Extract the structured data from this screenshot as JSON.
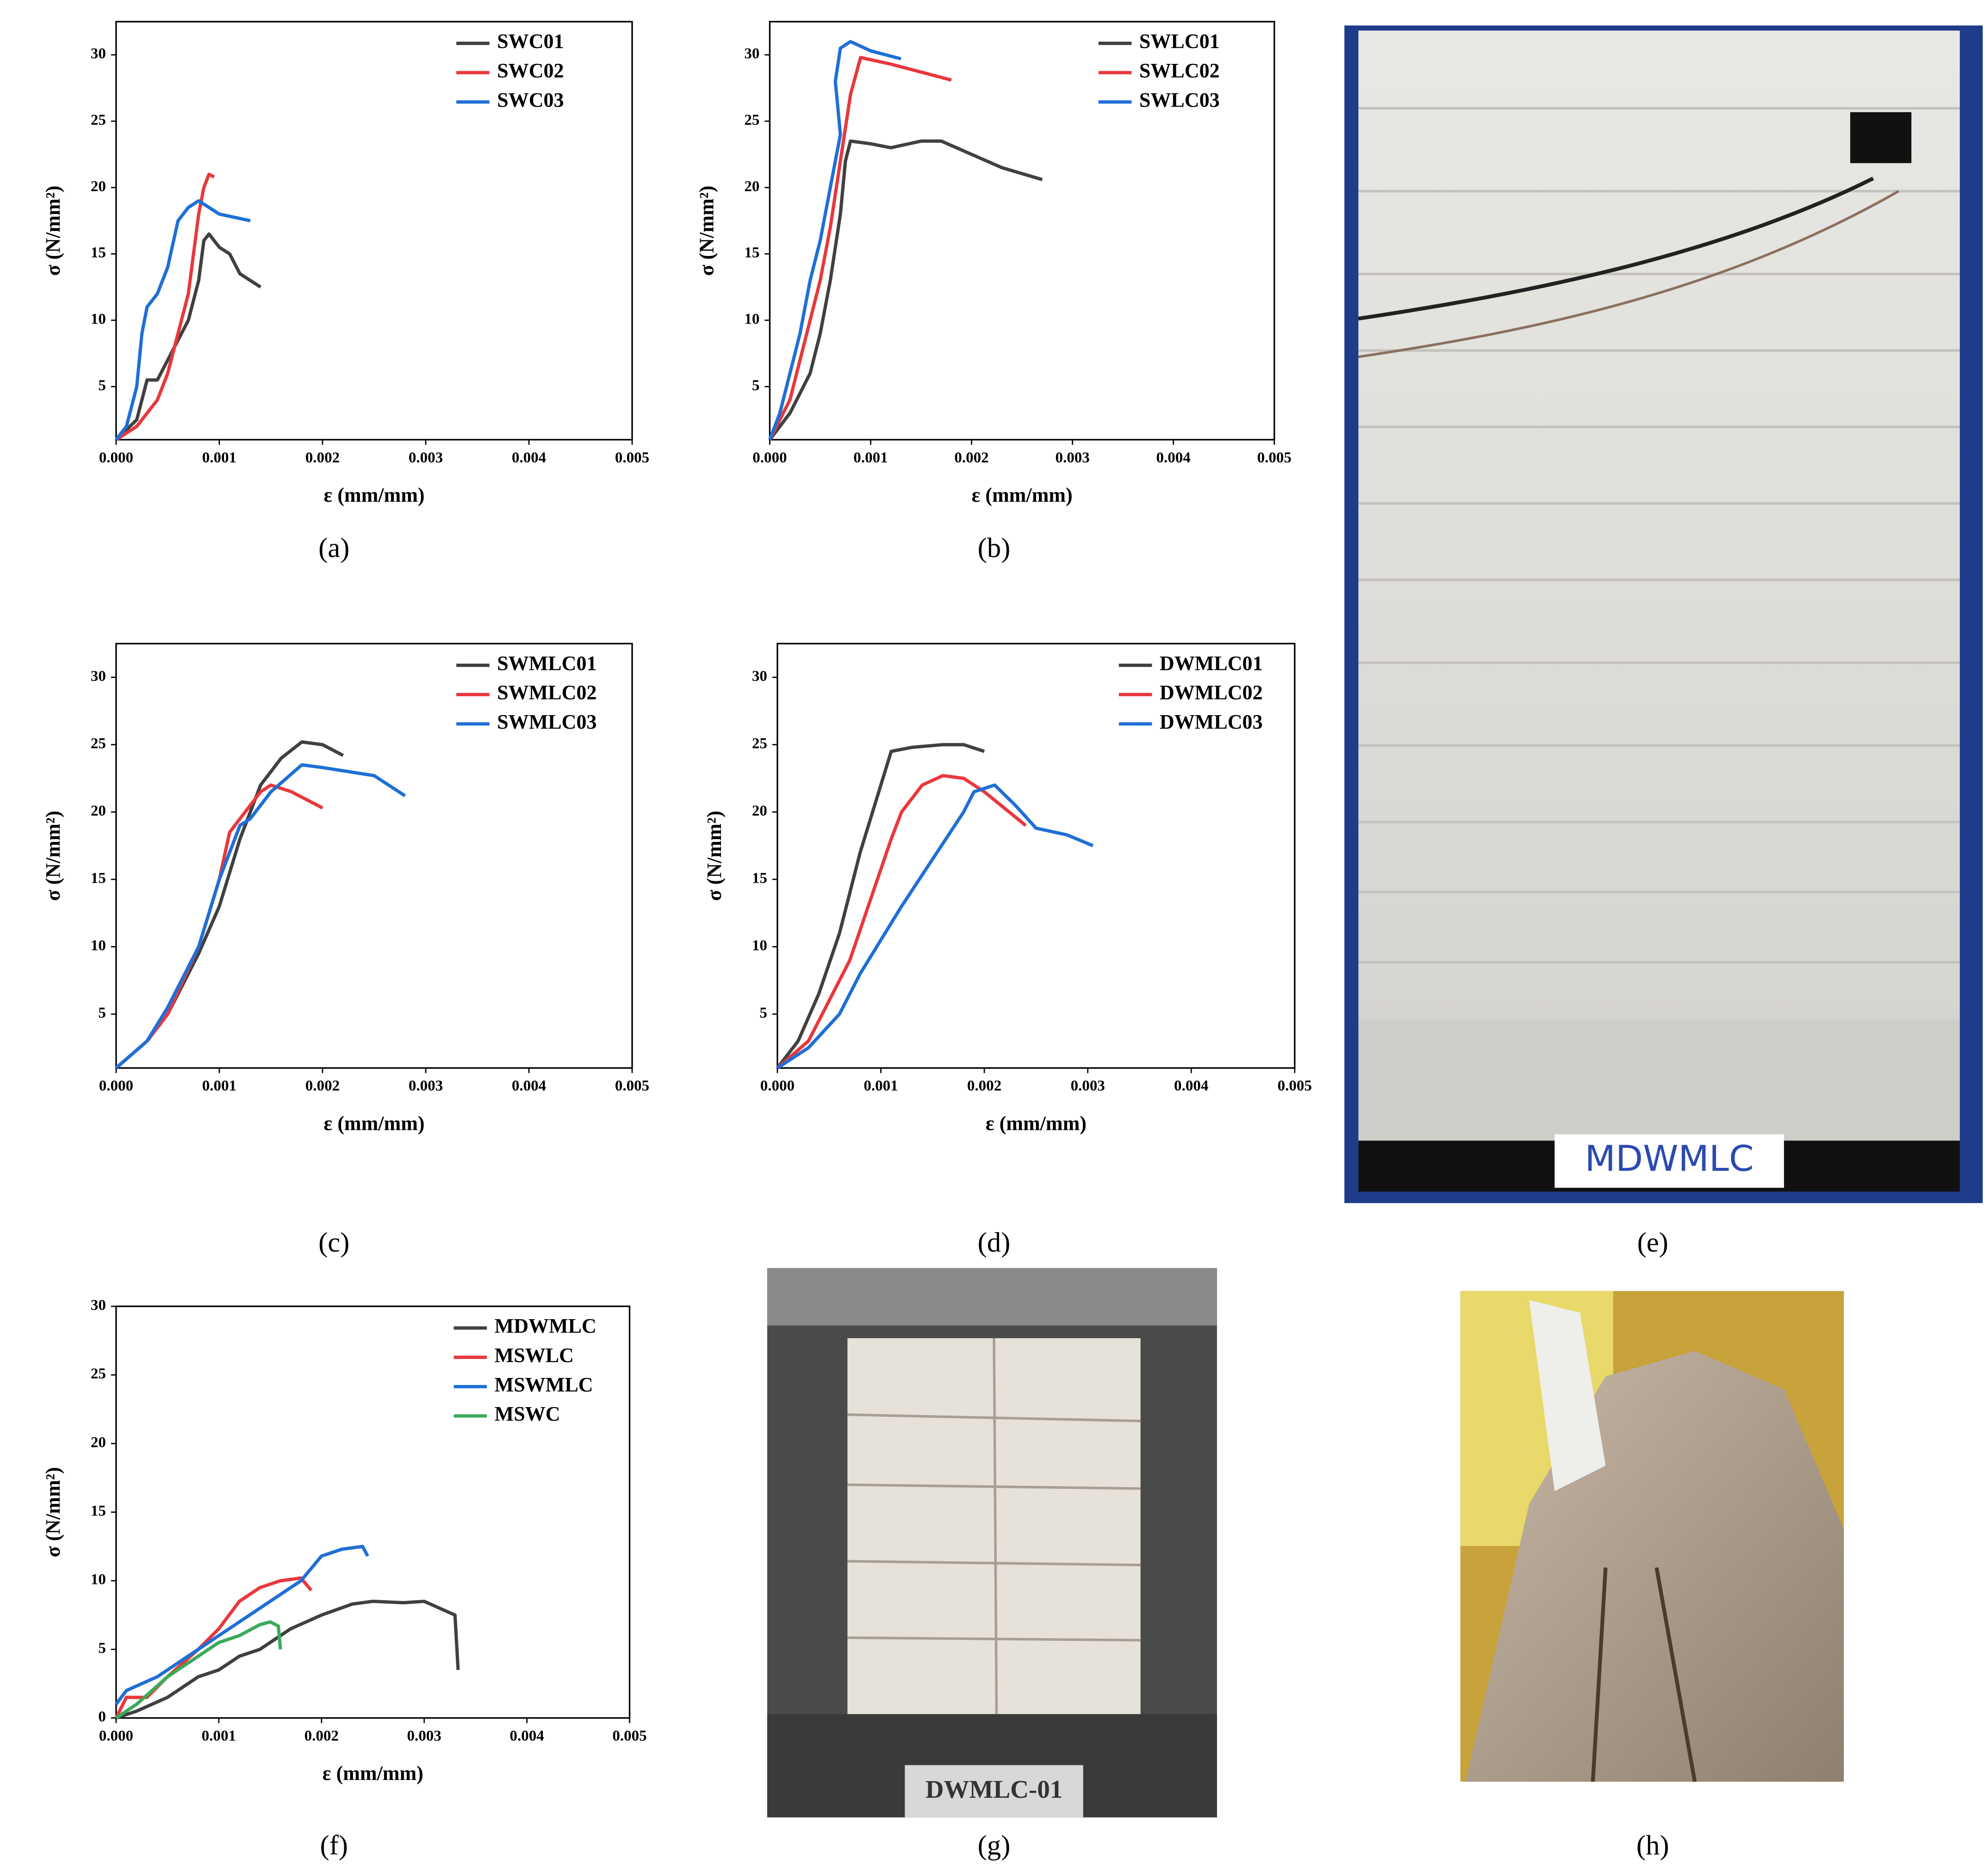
{
  "chart_data": [
    {
      "type": "line",
      "panel": "(a)",
      "xlabel": "ε (mm/mm)",
      "ylabel": "σ (N/mm²)",
      "xlim": [
        0,
        0.005
      ],
      "ylim": [
        1,
        32.5
      ],
      "xticks": [
        {
          "value": 0,
          "label": "0.000"
        },
        {
          "value": 0.001,
          "label": "0.001"
        },
        {
          "value": 0.002,
          "label": "0.002"
        },
        {
          "value": 0.003,
          "label": "0.003"
        },
        {
          "value": 0.004,
          "label": "0.004"
        },
        {
          "value": 0.005,
          "label": "0.005"
        }
      ],
      "yticks": [
        5,
        10,
        15,
        20,
        25,
        30
      ],
      "legend": "upper right",
      "series": [
        {
          "name": "SWC01",
          "color": "#404040",
          "x": [
            0,
            0.0002,
            0.0003,
            0.0004,
            0.0005,
            0.0007,
            0.0008,
            0.00085,
            0.0009,
            0.001,
            0.0011,
            0.0012,
            0.0014
          ],
          "values": [
            1,
            2.5,
            5.5,
            5.5,
            7,
            10,
            13,
            16,
            16.5,
            15.5,
            15,
            13.5,
            12.5
          ]
        },
        {
          "name": "SWC02",
          "color": "#e8383d",
          "x": [
            0,
            0.0002,
            0.0004,
            0.0005,
            0.0006,
            0.0007,
            0.00075,
            0.0008,
            0.00085,
            0.0009,
            0.00095
          ],
          "values": [
            1,
            2,
            4,
            6,
            9,
            12,
            15,
            18,
            20,
            21,
            20.8
          ]
        },
        {
          "name": "SWC03",
          "color": "#1f6fd6",
          "x": [
            0,
            0.0001,
            0.0002,
            0.00025,
            0.0003,
            0.0004,
            0.0005,
            0.0006,
            0.0007,
            0.0008,
            0.0009,
            0.001,
            0.0013
          ],
          "values": [
            1,
            2,
            5,
            9,
            11,
            12,
            14,
            17.5,
            18.5,
            19,
            18.5,
            18,
            17.5
          ]
        }
      ]
    },
    {
      "type": "line",
      "panel": "(b)",
      "xlabel": "ε (mm/mm)",
      "ylabel": "σ (N/mm²)",
      "xlim": [
        0,
        0.005
      ],
      "ylim": [
        1,
        32.5
      ],
      "xticks": [
        {
          "value": 0,
          "label": "0.000"
        },
        {
          "value": 0.001,
          "label": "0.001"
        },
        {
          "value": 0.002,
          "label": "0.002"
        },
        {
          "value": 0.003,
          "label": "0.003"
        },
        {
          "value": 0.004,
          "label": "0.004"
        },
        {
          "value": 0.005,
          "label": "0.005"
        }
      ],
      "yticks": [
        5,
        10,
        15,
        20,
        25,
        30
      ],
      "legend": "upper right",
      "series": [
        {
          "name": "SWLC01",
          "color": "#404040",
          "x": [
            0,
            0.0002,
            0.0004,
            0.0005,
            0.0006,
            0.0007,
            0.00075,
            0.0008,
            0.001,
            0.0012,
            0.0015,
            0.0017,
            0.002,
            0.0023,
            0.0027
          ],
          "values": [
            1,
            3,
            6,
            9,
            13,
            18,
            22,
            23.5,
            23.3,
            23,
            23.5,
            23.5,
            22.5,
            21.5,
            20.6
          ]
        },
        {
          "name": "SWLC02",
          "color": "#e8383d",
          "x": [
            0,
            0.0002,
            0.0003,
            0.0004,
            0.0005,
            0.0006,
            0.0007,
            0.0008,
            0.0009,
            0.0012,
            0.0015,
            0.0018
          ],
          "values": [
            1,
            4,
            7,
            10,
            13,
            17,
            22,
            27,
            29.8,
            29.3,
            28.7,
            28.1
          ]
        },
        {
          "name": "SWLC03",
          "color": "#1f6fd6",
          "x": [
            0,
            0.0001,
            0.0002,
            0.0003,
            0.0004,
            0.0005,
            0.0006,
            0.0007,
            0.00065,
            0.0007,
            0.0008,
            0.001,
            0.0013
          ],
          "values": [
            1,
            3,
            6,
            9,
            13,
            16,
            20,
            24,
            28,
            30.5,
            31,
            30.3,
            29.7
          ]
        }
      ]
    },
    {
      "type": "line",
      "panel": "(c)",
      "xlabel": "ε (mm/mm)",
      "ylabel": "σ (N/mm²)",
      "xlim": [
        0,
        0.005
      ],
      "ylim": [
        1,
        32.5
      ],
      "xticks": [
        {
          "value": 0,
          "label": "0.000"
        },
        {
          "value": 0.001,
          "label": "0.001"
        },
        {
          "value": 0.002,
          "label": "0.002"
        },
        {
          "value": 0.003,
          "label": "0.003"
        },
        {
          "value": 0.004,
          "label": "0.004"
        },
        {
          "value": 0.005,
          "label": "0.005"
        }
      ],
      "yticks": [
        5,
        10,
        15,
        20,
        25,
        30
      ],
      "legend": "upper right",
      "series": [
        {
          "name": "SWMLC01",
          "color": "#404040",
          "x": [
            0,
            0.0003,
            0.0005,
            0.0008,
            0.001,
            0.0012,
            0.0014,
            0.0016,
            0.0018,
            0.002,
            0.0022
          ],
          "values": [
            1,
            3,
            5,
            9.5,
            13,
            18,
            22,
            24,
            25.2,
            25,
            24.2
          ]
        },
        {
          "name": "SWMLC02",
          "color": "#e8383d",
          "x": [
            0,
            0.0003,
            0.0005,
            0.0008,
            0.001,
            0.0011,
            0.0012,
            0.0014,
            0.0015,
            0.0017,
            0.002
          ],
          "values": [
            1,
            3,
            5,
            10,
            15,
            18.5,
            19.5,
            21.5,
            22,
            21.5,
            20.3
          ]
        },
        {
          "name": "SWMLC03",
          "color": "#1f6fd6",
          "x": [
            0,
            0.0003,
            0.0005,
            0.0008,
            0.001,
            0.0012,
            0.0013,
            0.0015,
            0.0018,
            0.002,
            0.0025,
            0.0028
          ],
          "values": [
            1,
            3,
            5.5,
            10,
            15,
            19,
            19.5,
            21.5,
            23.5,
            23.3,
            22.7,
            21.2
          ]
        }
      ]
    },
    {
      "type": "line",
      "panel": "(d)",
      "xlabel": "ε (mm/mm)",
      "ylabel": "σ (N/mm²)",
      "xlim": [
        0,
        0.005
      ],
      "ylim": [
        1,
        32.5
      ],
      "xticks": [
        {
          "value": 0,
          "label": "0.000"
        },
        {
          "value": 0.001,
          "label": "0.001"
        },
        {
          "value": 0.002,
          "label": "0.002"
        },
        {
          "value": 0.003,
          "label": "0.003"
        },
        {
          "value": 0.004,
          "label": "0.004"
        },
        {
          "value": 0.005,
          "label": "0.005"
        }
      ],
      "yticks": [
        5,
        10,
        15,
        20,
        25,
        30
      ],
      "legend": "upper right",
      "series": [
        {
          "name": "DWMLC01",
          "color": "#404040",
          "x": [
            0,
            0.0002,
            0.0004,
            0.0006,
            0.0008,
            0.001,
            0.0011,
            0.0013,
            0.0016,
            0.0018,
            0.002
          ],
          "values": [
            1,
            3,
            6.5,
            11,
            17,
            22,
            24.5,
            24.8,
            25,
            25,
            24.5
          ]
        },
        {
          "name": "DWMLC02",
          "color": "#e8383d",
          "x": [
            0,
            0.0003,
            0.0005,
            0.0007,
            0.0009,
            0.0011,
            0.0012,
            0.0014,
            0.0016,
            0.0018,
            0.002,
            0.0024
          ],
          "values": [
            1,
            3,
            6,
            9,
            13.5,
            18,
            20,
            22,
            22.7,
            22.5,
            21.5,
            19
          ]
        },
        {
          "name": "DWMLC03",
          "color": "#1f6fd6",
          "x": [
            0,
            0.0003,
            0.0006,
            0.0008,
            0.001,
            0.0012,
            0.0015,
            0.0018,
            0.0019,
            0.0021,
            0.0023,
            0.0025,
            0.0028,
            0.00305
          ],
          "values": [
            1,
            2.5,
            5,
            8,
            10.5,
            13,
            16.5,
            20,
            21.5,
            22,
            20.5,
            18.8,
            18.3,
            17.5
          ]
        }
      ]
    },
    {
      "type": "line",
      "panel": "(f)",
      "xlabel": "ε (mm/mm)",
      "ylabel": "σ (N/mm²)",
      "xlim": [
        0,
        0.005
      ],
      "ylim": [
        0,
        30
      ],
      "xticks": [
        {
          "value": 0,
          "label": "0.000"
        },
        {
          "value": 0.001,
          "label": "0.001"
        },
        {
          "value": 0.002,
          "label": "0.002"
        },
        {
          "value": 0.003,
          "label": "0.003"
        },
        {
          "value": 0.004,
          "label": "0.004"
        },
        {
          "value": 0.005,
          "label": "0.005"
        }
      ],
      "yticks": [
        0,
        5,
        10,
        15,
        20,
        25,
        30
      ],
      "legend": "upper right",
      "series": [
        {
          "name": "MDWMLC",
          "color": "#404040",
          "x": [
            0,
            0.0002,
            0.0005,
            0.0008,
            0.001,
            0.0012,
            0.0014,
            0.0017,
            0.002,
            0.0023,
            0.0025,
            0.0028,
            0.003,
            0.0033,
            0.00333
          ],
          "values": [
            0,
            0.5,
            1.5,
            3,
            3.5,
            4.5,
            5,
            6.5,
            7.5,
            8.3,
            8.5,
            8.4,
            8.5,
            7.5,
            3.5
          ]
        },
        {
          "name": "MSWLC",
          "color": "#e8383d",
          "x": [
            0,
            0.0001,
            0.0003,
            0.0005,
            0.0008,
            0.001,
            0.0012,
            0.0014,
            0.0016,
            0.0018,
            0.0019
          ],
          "values": [
            0,
            1.5,
            1.5,
            3,
            5,
            6.5,
            8.5,
            9.5,
            10,
            10.2,
            9.3
          ]
        },
        {
          "name": "MSWMLC",
          "color": "#1f6fd6",
          "x": [
            0,
            0.0001,
            0.0004,
            0.0008,
            0.001,
            0.0013,
            0.0015,
            0.0018,
            0.002,
            0.0022,
            0.0024,
            0.00245
          ],
          "values": [
            1,
            2,
            3,
            5,
            6,
            7.5,
            8.5,
            10,
            11.8,
            12.3,
            12.5,
            11.8
          ]
        },
        {
          "name": "MSWC",
          "color": "#3aaa5a",
          "x": [
            0,
            0.0002,
            0.0005,
            0.0008,
            0.001,
            0.0012,
            0.0014,
            0.0015,
            0.00158,
            0.0016
          ],
          "values": [
            0,
            1,
            3,
            4.5,
            5.5,
            6,
            6.8,
            7,
            6.7,
            5
          ]
        }
      ]
    }
  ],
  "photos": [
    {
      "panel": "(e)",
      "caption": "MDWMLC"
    },
    {
      "panel": "(g)",
      "caption": "DWMLC-01"
    },
    {
      "panel": "(h)"
    }
  ]
}
